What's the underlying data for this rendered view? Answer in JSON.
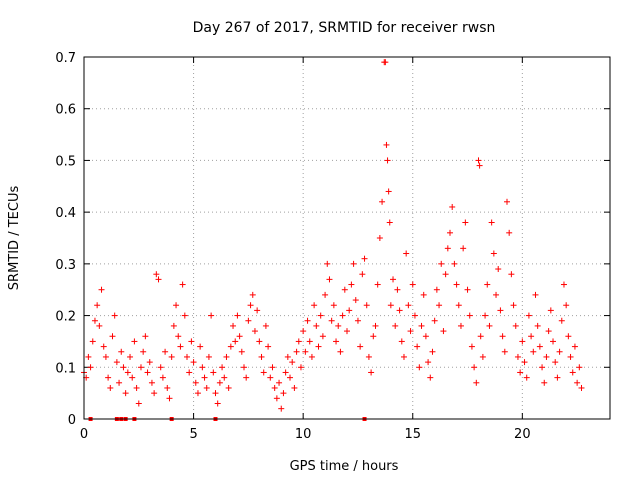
{
  "chart_data": {
    "type": "scatter",
    "title": "Day 267 of 2017, SRMTID for receiver rwsn",
    "xlabel": "GPS time / hours",
    "ylabel": "SRMTID / TECUs",
    "xlim": [
      0,
      24
    ],
    "ylim": [
      0,
      0.7
    ],
    "xticks": [
      "0",
      "5",
      "10",
      "15",
      "20"
    ],
    "yticks": [
      "0",
      "0.1",
      "0.2",
      "0.3",
      "0.4",
      "0.5",
      "0.6",
      "0.7"
    ],
    "grid": true,
    "marker": "+",
    "color": "#ff0000",
    "series": [
      {
        "name": "SRMTID",
        "points": [
          [
            0.0,
            0.09
          ],
          [
            0.1,
            0.08
          ],
          [
            0.2,
            0.12
          ],
          [
            0.3,
            0.1
          ],
          [
            0.4,
            0.15
          ],
          [
            0.5,
            0.19
          ],
          [
            0.6,
            0.22
          ],
          [
            0.7,
            0.18
          ],
          [
            0.8,
            0.25
          ],
          [
            0.9,
            0.14
          ],
          [
            1.0,
            0.12
          ],
          [
            1.1,
            0.08
          ],
          [
            1.2,
            0.06
          ],
          [
            1.3,
            0.16
          ],
          [
            1.4,
            0.2
          ],
          [
            1.5,
            0.11
          ],
          [
            1.6,
            0.07
          ],
          [
            1.7,
            0.13
          ],
          [
            1.8,
            0.1
          ],
          [
            1.9,
            0.05
          ],
          [
            2.0,
            0.09
          ],
          [
            2.1,
            0.12
          ],
          [
            2.2,
            0.08
          ],
          [
            2.3,
            0.15
          ],
          [
            2.4,
            0.06
          ],
          [
            2.5,
            0.03
          ],
          [
            2.6,
            0.1
          ],
          [
            2.7,
            0.13
          ],
          [
            2.8,
            0.16
          ],
          [
            2.9,
            0.09
          ],
          [
            3.0,
            0.11
          ],
          [
            3.1,
            0.07
          ],
          [
            3.2,
            0.05
          ],
          [
            3.3,
            0.28
          ],
          [
            3.4,
            0.27
          ],
          [
            3.5,
            0.1
          ],
          [
            3.6,
            0.08
          ],
          [
            3.7,
            0.13
          ],
          [
            3.8,
            0.06
          ],
          [
            3.9,
            0.04
          ],
          [
            4.0,
            0.12
          ],
          [
            4.1,
            0.18
          ],
          [
            4.2,
            0.22
          ],
          [
            4.3,
            0.16
          ],
          [
            4.4,
            0.14
          ],
          [
            4.5,
            0.26
          ],
          [
            4.6,
            0.2
          ],
          [
            4.7,
            0.12
          ],
          [
            4.8,
            0.09
          ],
          [
            4.9,
            0.15
          ],
          [
            5.0,
            0.11
          ],
          [
            5.1,
            0.07
          ],
          [
            5.2,
            0.05
          ],
          [
            5.3,
            0.14
          ],
          [
            5.4,
            0.1
          ],
          [
            5.5,
            0.08
          ],
          [
            5.6,
            0.06
          ],
          [
            5.7,
            0.12
          ],
          [
            5.8,
            0.2
          ],
          [
            5.9,
            0.09
          ],
          [
            6.0,
            0.05
          ],
          [
            6.1,
            0.03
          ],
          [
            6.2,
            0.07
          ],
          [
            6.3,
            0.1
          ],
          [
            6.4,
            0.08
          ],
          [
            6.5,
            0.12
          ],
          [
            6.6,
            0.06
          ],
          [
            6.7,
            0.14
          ],
          [
            6.8,
            0.18
          ],
          [
            6.9,
            0.15
          ],
          [
            7.0,
            0.2
          ],
          [
            7.1,
            0.16
          ],
          [
            7.2,
            0.13
          ],
          [
            7.3,
            0.1
          ],
          [
            7.4,
            0.08
          ],
          [
            7.5,
            0.19
          ],
          [
            7.6,
            0.22
          ],
          [
            7.7,
            0.24
          ],
          [
            7.8,
            0.17
          ],
          [
            7.9,
            0.21
          ],
          [
            8.0,
            0.15
          ],
          [
            8.1,
            0.12
          ],
          [
            8.2,
            0.09
          ],
          [
            8.3,
            0.18
          ],
          [
            8.4,
            0.14
          ],
          [
            8.5,
            0.08
          ],
          [
            8.6,
            0.1
          ],
          [
            8.7,
            0.06
          ],
          [
            8.8,
            0.04
          ],
          [
            8.9,
            0.07
          ],
          [
            9.0,
            0.02
          ],
          [
            9.1,
            0.05
          ],
          [
            9.2,
            0.09
          ],
          [
            9.3,
            0.12
          ],
          [
            9.4,
            0.08
          ],
          [
            9.5,
            0.11
          ],
          [
            9.6,
            0.06
          ],
          [
            9.7,
            0.13
          ],
          [
            9.8,
            0.15
          ],
          [
            9.9,
            0.1
          ],
          [
            10.0,
            0.17
          ],
          [
            10.1,
            0.13
          ],
          [
            10.2,
            0.19
          ],
          [
            10.3,
            0.15
          ],
          [
            10.4,
            0.12
          ],
          [
            10.5,
            0.22
          ],
          [
            10.6,
            0.18
          ],
          [
            10.7,
            0.14
          ],
          [
            10.8,
            0.2
          ],
          [
            10.9,
            0.16
          ],
          [
            11.0,
            0.24
          ],
          [
            11.1,
            0.3
          ],
          [
            11.2,
            0.27
          ],
          [
            11.3,
            0.19
          ],
          [
            11.4,
            0.22
          ],
          [
            11.5,
            0.15
          ],
          [
            11.6,
            0.18
          ],
          [
            11.7,
            0.13
          ],
          [
            11.8,
            0.2
          ],
          [
            11.9,
            0.25
          ],
          [
            12.0,
            0.17
          ],
          [
            12.1,
            0.21
          ],
          [
            12.2,
            0.26
          ],
          [
            12.3,
            0.3
          ],
          [
            12.4,
            0.23
          ],
          [
            12.5,
            0.19
          ],
          [
            12.6,
            0.14
          ],
          [
            12.7,
            0.28
          ],
          [
            12.8,
            0.31
          ],
          [
            12.9,
            0.22
          ],
          [
            13.0,
            0.12
          ],
          [
            13.1,
            0.09
          ],
          [
            13.2,
            0.16
          ],
          [
            13.3,
            0.18
          ],
          [
            13.4,
            0.26
          ],
          [
            13.5,
            0.35
          ],
          [
            13.6,
            0.42
          ],
          [
            13.7,
            0.69
          ],
          [
            13.75,
            0.69
          ],
          [
            13.8,
            0.53
          ],
          [
            13.85,
            0.5
          ],
          [
            13.9,
            0.44
          ],
          [
            13.95,
            0.38
          ],
          [
            14.0,
            0.22
          ],
          [
            14.1,
            0.27
          ],
          [
            14.2,
            0.18
          ],
          [
            14.3,
            0.25
          ],
          [
            14.4,
            0.21
          ],
          [
            14.5,
            0.15
          ],
          [
            14.6,
            0.12
          ],
          [
            14.7,
            0.32
          ],
          [
            14.8,
            0.22
          ],
          [
            14.9,
            0.17
          ],
          [
            15.0,
            0.26
          ],
          [
            15.1,
            0.2
          ],
          [
            15.2,
            0.14
          ],
          [
            15.3,
            0.1
          ],
          [
            15.4,
            0.18
          ],
          [
            15.5,
            0.24
          ],
          [
            15.6,
            0.16
          ],
          [
            15.7,
            0.11
          ],
          [
            15.8,
            0.08
          ],
          [
            15.9,
            0.13
          ],
          [
            16.0,
            0.19
          ],
          [
            16.1,
            0.25
          ],
          [
            16.2,
            0.22
          ],
          [
            16.3,
            0.3
          ],
          [
            16.4,
            0.17
          ],
          [
            16.5,
            0.28
          ],
          [
            16.6,
            0.33
          ],
          [
            16.7,
            0.36
          ],
          [
            16.8,
            0.41
          ],
          [
            16.9,
            0.3
          ],
          [
            17.0,
            0.26
          ],
          [
            17.1,
            0.22
          ],
          [
            17.2,
            0.18
          ],
          [
            17.3,
            0.33
          ],
          [
            17.4,
            0.38
          ],
          [
            17.5,
            0.25
          ],
          [
            17.6,
            0.2
          ],
          [
            17.7,
            0.14
          ],
          [
            17.8,
            0.1
          ],
          [
            17.9,
            0.07
          ],
          [
            18.0,
            0.5
          ],
          [
            18.05,
            0.49
          ],
          [
            18.1,
            0.16
          ],
          [
            18.2,
            0.12
          ],
          [
            18.3,
            0.2
          ],
          [
            18.4,
            0.26
          ],
          [
            18.5,
            0.18
          ],
          [
            18.6,
            0.38
          ],
          [
            18.7,
            0.32
          ],
          [
            18.8,
            0.24
          ],
          [
            18.9,
            0.29
          ],
          [
            19.0,
            0.21
          ],
          [
            19.1,
            0.16
          ],
          [
            19.2,
            0.13
          ],
          [
            19.3,
            0.42
          ],
          [
            19.4,
            0.36
          ],
          [
            19.5,
            0.28
          ],
          [
            19.6,
            0.22
          ],
          [
            19.7,
            0.18
          ],
          [
            19.8,
            0.12
          ],
          [
            19.9,
            0.09
          ],
          [
            20.0,
            0.15
          ],
          [
            20.1,
            0.11
          ],
          [
            20.2,
            0.08
          ],
          [
            20.3,
            0.2
          ],
          [
            20.4,
            0.16
          ],
          [
            20.5,
            0.13
          ],
          [
            20.6,
            0.24
          ],
          [
            20.7,
            0.18
          ],
          [
            20.8,
            0.14
          ],
          [
            20.9,
            0.1
          ],
          [
            21.0,
            0.07
          ],
          [
            21.1,
            0.12
          ],
          [
            21.2,
            0.17
          ],
          [
            21.3,
            0.21
          ],
          [
            21.4,
            0.15
          ],
          [
            21.5,
            0.11
          ],
          [
            21.6,
            0.08
          ],
          [
            21.7,
            0.13
          ],
          [
            21.8,
            0.19
          ],
          [
            21.9,
            0.26
          ],
          [
            22.0,
            0.22
          ],
          [
            22.1,
            0.16
          ],
          [
            22.2,
            0.12
          ],
          [
            22.3,
            0.09
          ],
          [
            22.4,
            0.14
          ],
          [
            22.5,
            0.07
          ],
          [
            22.6,
            0.1
          ],
          [
            22.7,
            0.06
          ]
        ]
      }
    ],
    "zero_points_x": [
      0.3,
      1.5,
      1.7,
      1.9,
      2.3,
      4.0,
      6.0,
      12.8
    ]
  }
}
